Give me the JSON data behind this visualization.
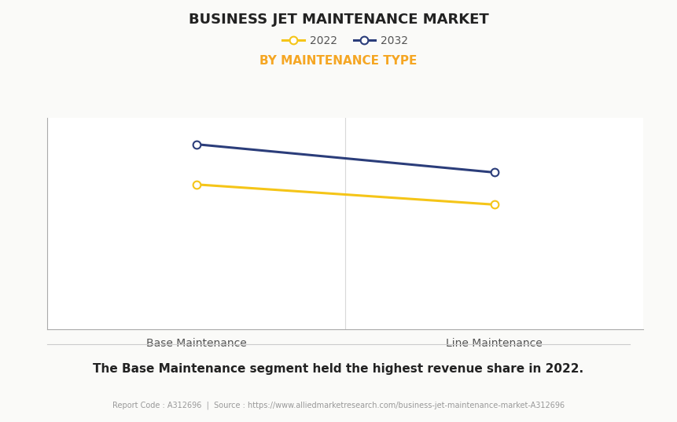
{
  "title": "BUSINESS JET MAINTENANCE MARKET",
  "subtitle": "BY MAINTENANCE TYPE",
  "categories": [
    "Base Maintenance",
    "Line Maintenance"
  ],
  "series": [
    {
      "label": "2022",
      "color": "#F5C518",
      "values": [
        0.72,
        0.62
      ],
      "marker": "o",
      "marker_facecolor": "white",
      "marker_edgecolor": "#F5C518",
      "linewidth": 2.2
    },
    {
      "label": "2032",
      "color": "#2B3D7A",
      "values": [
        0.92,
        0.78
      ],
      "marker": "o",
      "marker_facecolor": "white",
      "marker_edgecolor": "#2B3D7A",
      "linewidth": 2.2
    }
  ],
  "ylim": [
    0,
    1.05
  ],
  "xlim": [
    -0.5,
    1.5
  ],
  "background_color": "#fafaf8",
  "plot_background_color": "#ffffff",
  "title_fontsize": 13,
  "subtitle_fontsize": 11,
  "subtitle_color": "#F5A623",
  "legend_fontsize": 10,
  "tick_fontsize": 10,
  "grid_color": "#d8d8d8",
  "footer_text": "The Base Maintenance segment held the highest revenue share in 2022.",
  "source_text": "Report Code : A312696  |  Source : https://www.alliedmarketresearch.com/business-jet-maintenance-market-A312696"
}
